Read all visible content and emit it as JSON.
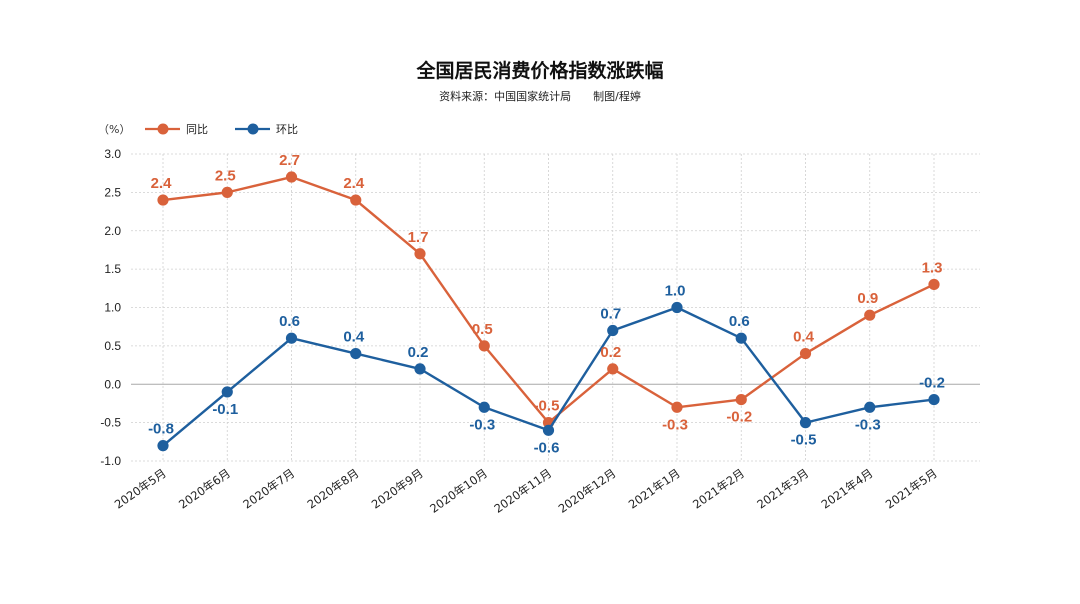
{
  "chart_data": {
    "type": "line",
    "title": "全国居民消费价格指数涨跌幅",
    "subtitle": "资料来源：中国国家统计局　　制图/程婷",
    "unit_label": "（%）",
    "categories": [
      "2020年5月",
      "2020年6月",
      "2020年7月",
      "2020年8月",
      "2020年9月",
      "2020年10月",
      "2020年11月",
      "2020年12月",
      "2021年1月",
      "2021年2月",
      "2021年3月",
      "2021年4月",
      "2021年5月"
    ],
    "series": [
      {
        "name": "同比",
        "color": "#d9623b",
        "values": [
          2.4,
          2.5,
          2.7,
          2.4,
          1.7,
          0.5,
          -0.5,
          0.2,
          -0.3,
          -0.2,
          0.4,
          0.9,
          1.3
        ],
        "labels": [
          "2.4",
          "2.5",
          "2.7",
          "2.4",
          "1.7",
          "0.5",
          "-0.5",
          "0.2",
          "-0.3",
          "-0.2",
          "0.4",
          "0.9",
          "1.3"
        ]
      },
      {
        "name": "环比",
        "color": "#1e5f9e",
        "values": [
          -0.8,
          -0.1,
          0.6,
          0.4,
          0.2,
          -0.3,
          -0.6,
          0.7,
          1.0,
          0.6,
          -0.5,
          -0.3,
          -0.2
        ],
        "labels": [
          "-0.8",
          "-0.1",
          "0.6",
          "0.4",
          "0.2",
          "-0.3",
          "-0.6",
          "0.7",
          "1.0",
          "0.6",
          "-0.5",
          "-0.3",
          "-0.2"
        ]
      }
    ],
    "yticks": [
      "3.0",
      "2.5",
      "2.0",
      "1.5",
      "1.0",
      "0.5",
      "0.0",
      "-0.5",
      "-1.0"
    ],
    "ylim": [
      -1.0,
      3.0
    ],
    "legend_position": "top-left",
    "grid": true
  }
}
